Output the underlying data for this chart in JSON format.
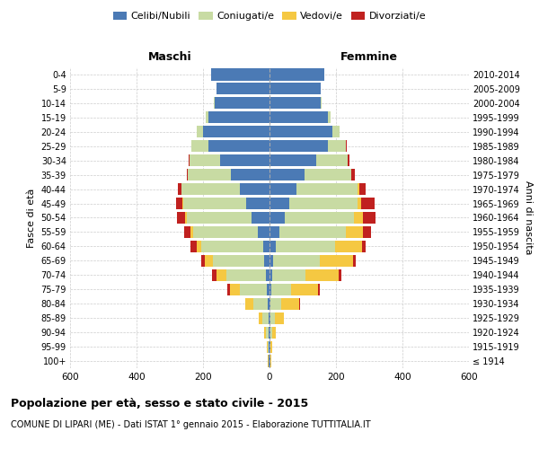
{
  "age_groups": [
    "100+",
    "95-99",
    "90-94",
    "85-89",
    "80-84",
    "75-79",
    "70-74",
    "65-69",
    "60-64",
    "55-59",
    "50-54",
    "45-49",
    "40-44",
    "35-39",
    "30-34",
    "25-29",
    "20-24",
    "15-19",
    "10-14",
    "5-9",
    "0-4"
  ],
  "birth_years": [
    "≤ 1914",
    "1915-1919",
    "1920-1924",
    "1925-1929",
    "1930-1934",
    "1935-1939",
    "1940-1944",
    "1945-1949",
    "1950-1954",
    "1955-1959",
    "1960-1964",
    "1965-1969",
    "1970-1974",
    "1975-1979",
    "1980-1984",
    "1985-1989",
    "1990-1994",
    "1995-1999",
    "2000-2004",
    "2005-2009",
    "2010-2014"
  ],
  "males": {
    "celibi": [
      2,
      2,
      2,
      3,
      5,
      8,
      10,
      15,
      20,
      35,
      55,
      70,
      90,
      115,
      150,
      185,
      200,
      185,
      165,
      160,
      175
    ],
    "coniugati": [
      2,
      3,
      8,
      18,
      45,
      80,
      120,
      155,
      185,
      195,
      195,
      190,
      175,
      130,
      90,
      50,
      20,
      8,
      2,
      0,
      0
    ],
    "vedovi": [
      1,
      2,
      5,
      12,
      22,
      30,
      30,
      25,
      15,
      8,
      4,
      2,
      1,
      0,
      0,
      0,
      0,
      0,
      0,
      0,
      0
    ],
    "divorziati": [
      0,
      0,
      0,
      0,
      2,
      8,
      12,
      10,
      18,
      20,
      25,
      20,
      10,
      5,
      2,
      1,
      0,
      0,
      0,
      0,
      0
    ]
  },
  "females": {
    "nubili": [
      2,
      2,
      2,
      3,
      4,
      6,
      8,
      12,
      18,
      30,
      45,
      60,
      80,
      105,
      140,
      175,
      190,
      175,
      155,
      155,
      165
    ],
    "coniugate": [
      1,
      2,
      5,
      12,
      30,
      60,
      100,
      140,
      180,
      200,
      210,
      205,
      185,
      140,
      95,
      55,
      22,
      8,
      2,
      0,
      0
    ],
    "vedove": [
      2,
      5,
      12,
      28,
      55,
      80,
      100,
      100,
      80,
      50,
      25,
      12,
      5,
      2,
      1,
      0,
      0,
      0,
      0,
      0,
      0
    ],
    "divorziate": [
      0,
      0,
      0,
      0,
      2,
      5,
      8,
      8,
      12,
      25,
      40,
      40,
      18,
      10,
      4,
      2,
      0,
      0,
      0,
      0,
      0
    ]
  },
  "color_celibi": "#4b7ab5",
  "color_coniugati": "#c8dba3",
  "color_vedovi": "#f5c842",
  "color_divorziati": "#c0211f",
  "xlim": 600,
  "title": "Popolazione per età, sesso e stato civile - 2015",
  "subtitle": "COMUNE DI LIPARI (ME) - Dati ISTAT 1° gennaio 2015 - Elaborazione TUTTITALIA.IT",
  "ylabel": "Fasce di età",
  "ylabel_right": "Anni di nascita",
  "label_maschi": "Maschi",
  "label_femmine": "Femmine",
  "legend_celibi": "Celibi/Nubili",
  "legend_coniugati": "Coniugati/e",
  "legend_vedovi": "Vedovi/e",
  "legend_divorziati": "Divorziati/e"
}
